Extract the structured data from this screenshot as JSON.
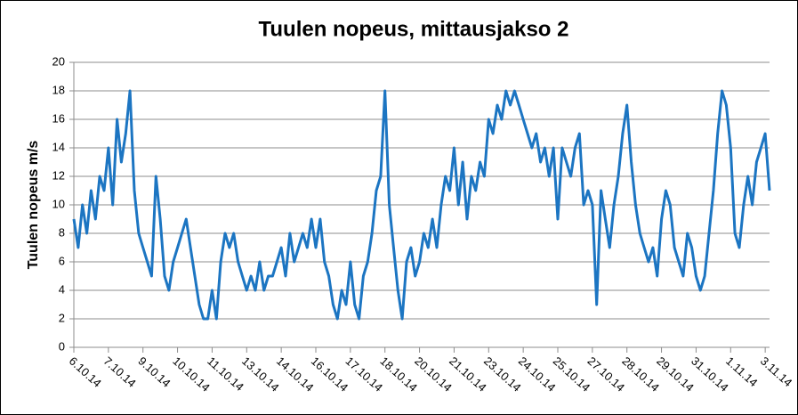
{
  "chart_data": {
    "type": "line",
    "title": "Tuulen nopeus, mittausjakso 2",
    "y_label": "Tuulen nopeus m/s",
    "color": "#1c75c2",
    "grid": true,
    "ylim": [
      0,
      20
    ],
    "yticks": [
      0,
      2,
      4,
      6,
      8,
      10,
      12,
      14,
      16,
      18,
      20
    ],
    "xlim": [
      0,
      161
    ],
    "xticks": [
      {
        "value": 0,
        "label": "6.10.14"
      },
      {
        "value": 8,
        "label": "7.10.14"
      },
      {
        "value": 16,
        "label": "9.10.14"
      },
      {
        "value": 24,
        "label": "10.10.14"
      },
      {
        "value": 32,
        "label": "11.10.14"
      },
      {
        "value": 40,
        "label": "13.10.14"
      },
      {
        "value": 48,
        "label": "14.10.14"
      },
      {
        "value": 56,
        "label": "16.10.14"
      },
      {
        "value": 64,
        "label": "17.10.14"
      },
      {
        "value": 72,
        "label": "18.10.14"
      },
      {
        "value": 80,
        "label": "20.10.14"
      },
      {
        "value": 88,
        "label": "21.10.14"
      },
      {
        "value": 96,
        "label": "23.10.14"
      },
      {
        "value": 104,
        "label": "24.10.14"
      },
      {
        "value": 112,
        "label": "25.10.14"
      },
      {
        "value": 120,
        "label": "27.10.14"
      },
      {
        "value": 128,
        "label": "28.10.14"
      },
      {
        "value": 136,
        "label": "29.10.14"
      },
      {
        "value": 144,
        "label": "31.10.14"
      },
      {
        "value": 152,
        "label": "1.11.14"
      },
      {
        "value": 160,
        "label": "3.11.14"
      }
    ],
    "values": [
      9,
      7,
      10,
      8,
      11,
      9,
      12,
      11,
      14,
      10,
      16,
      13,
      15,
      18,
      11,
      8,
      7,
      6,
      5,
      12,
      9,
      5,
      4,
      6,
      7,
      8,
      9,
      7,
      5,
      3,
      2,
      2,
      4,
      2,
      6,
      8,
      7,
      8,
      6,
      5,
      4,
      5,
      4,
      6,
      4,
      5,
      5,
      6,
      7,
      5,
      8,
      6,
      7,
      8,
      7,
      9,
      7,
      9,
      6,
      5,
      3,
      2,
      4,
      3,
      6,
      3,
      2,
      5,
      6,
      8,
      11,
      12,
      18,
      10,
      7,
      4,
      2,
      6,
      7,
      5,
      6,
      8,
      7,
      9,
      7,
      10,
      12,
      11,
      14,
      10,
      13,
      9,
      12,
      11,
      13,
      12,
      16,
      15,
      17,
      16,
      18,
      17,
      18,
      17,
      16,
      15,
      14,
      15,
      13,
      14,
      12,
      14,
      9,
      14,
      13,
      12,
      14,
      15,
      10,
      11,
      10,
      3,
      11,
      9,
      7,
      10,
      12,
      15,
      17,
      13,
      10,
      8,
      7,
      6,
      7,
      5,
      9,
      11,
      10,
      7,
      6,
      5,
      8,
      7,
      5,
      4,
      5,
      8,
      11,
      15,
      18,
      17,
      14,
      8,
      7,
      10,
      12,
      10,
      13,
      14,
      15,
      11
    ]
  }
}
